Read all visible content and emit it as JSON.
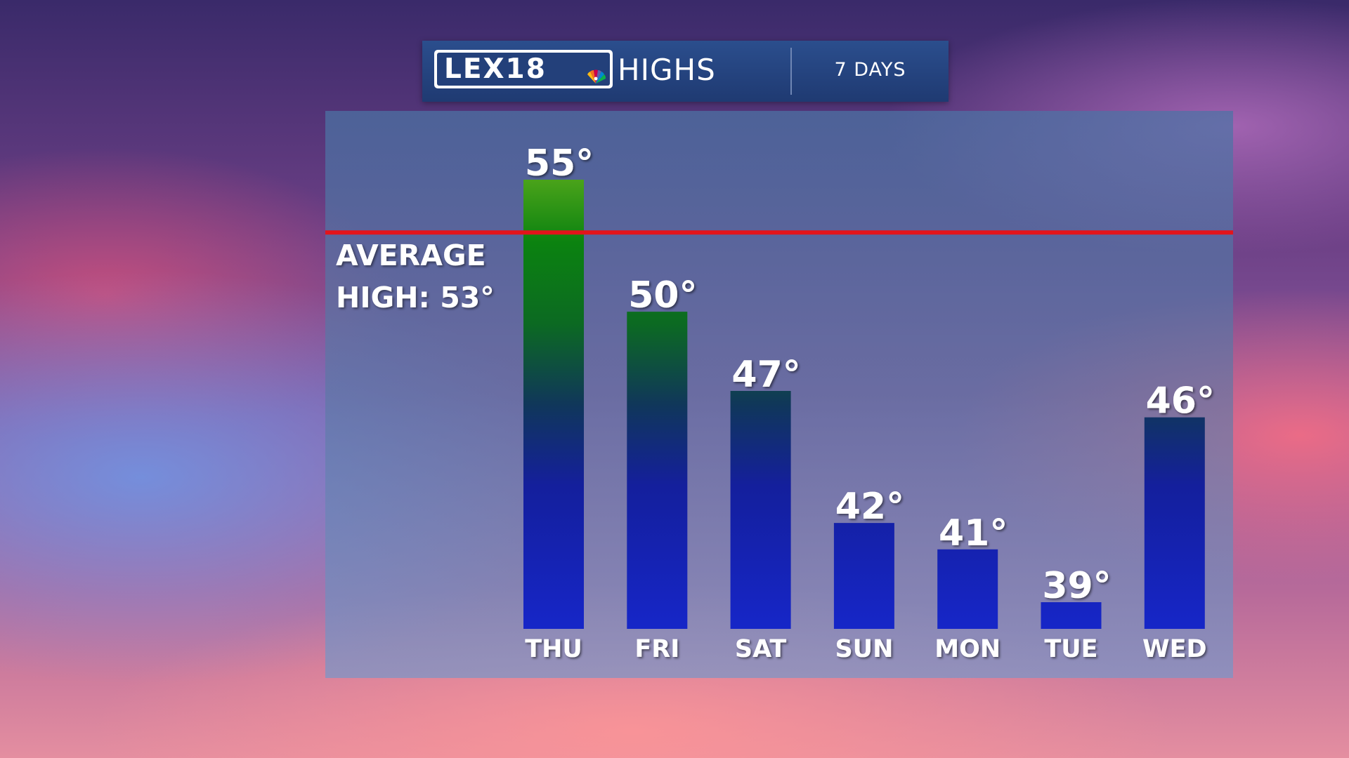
{
  "header": {
    "logo_text": "LEX18",
    "title": "HIGHS",
    "range": "7 DAYS"
  },
  "average": {
    "line1": "AVERAGE",
    "line2": "HIGH: 53°",
    "value": 53,
    "line_color": "#e3141b"
  },
  "chart_data": {
    "type": "bar",
    "title": "HIGHS",
    "subtitle": "7 DAYS",
    "categories": [
      "THU",
      "FRI",
      "SAT",
      "SUN",
      "MON",
      "TUE",
      "WED"
    ],
    "values": [
      55,
      50,
      47,
      42,
      41,
      39,
      46
    ],
    "value_labels": [
      "55°",
      "50°",
      "47°",
      "42°",
      "41°",
      "39°",
      "46°"
    ],
    "reference_line": {
      "label": "AVERAGE HIGH: 53°",
      "value": 53
    },
    "xlabel": "",
    "ylabel": "",
    "ylim": [
      38,
      55
    ],
    "grid": false,
    "legend": "none",
    "colors": {
      "warm": "#0e8a12",
      "cool": "#1422c8"
    }
  }
}
